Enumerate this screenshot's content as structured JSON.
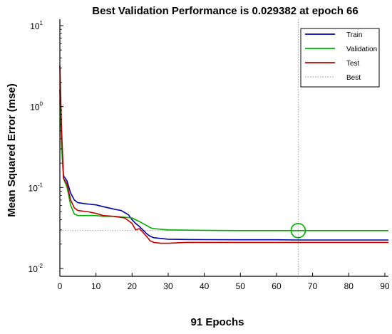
{
  "chart_data": {
    "type": "line",
    "title": "Best Validation Performance is 0.029382 at epoch 66",
    "xlabel": "91 Epochs",
    "ylabel": "Mean Squared Error  (mse)",
    "xlim": [
      0,
      91
    ],
    "ylim": [
      0.008,
      12
    ],
    "yscale": "log",
    "grid": false,
    "legend_position": "top-right",
    "x_ticks": [
      0,
      10,
      20,
      30,
      40,
      50,
      60,
      70,
      80,
      90
    ],
    "y_ticks": [
      {
        "value": 0.01,
        "base": "10",
        "exp": "-2"
      },
      {
        "value": 0.1,
        "base": "10",
        "exp": "-1"
      },
      {
        "value": 1,
        "base": "10",
        "exp": "0"
      },
      {
        "value": 10,
        "base": "10",
        "exp": "1"
      }
    ],
    "series": [
      {
        "name": "Train",
        "color": "#0000a8",
        "x": [
          0,
          0.5,
          1,
          2,
          3,
          4,
          5,
          7,
          10,
          12,
          15,
          17,
          19,
          20,
          21,
          22,
          23,
          24,
          25,
          26,
          28,
          30,
          35,
          40,
          50,
          60,
          66,
          70,
          80,
          91
        ],
        "y": [
          1.6,
          0.4,
          0.14,
          0.12,
          0.085,
          0.07,
          0.065,
          0.063,
          0.061,
          0.058,
          0.054,
          0.052,
          0.046,
          0.04,
          0.036,
          0.033,
          0.03,
          0.027,
          0.025,
          0.024,
          0.0235,
          0.023,
          0.0228,
          0.0227,
          0.0226,
          0.0226,
          0.0225,
          0.0225,
          0.0225,
          0.0225
        ]
      },
      {
        "name": "Validation",
        "color": "#00b000",
        "x": [
          0,
          0.5,
          1,
          2,
          3,
          4,
          5,
          8,
          10,
          12,
          15,
          18,
          20,
          22,
          24,
          25,
          26,
          28,
          30,
          40,
          50,
          60,
          66,
          70,
          80,
          91
        ],
        "y": [
          1.2,
          0.3,
          0.13,
          0.1,
          0.06,
          0.047,
          0.045,
          0.045,
          0.045,
          0.044,
          0.044,
          0.043,
          0.042,
          0.038,
          0.034,
          0.032,
          0.031,
          0.0305,
          0.03,
          0.0296,
          0.0294,
          0.02938,
          0.029382,
          0.02938,
          0.02938,
          0.02938
        ]
      },
      {
        "name": "Test",
        "color": "#c00000",
        "x": [
          0,
          0.5,
          1,
          2,
          3,
          4,
          5,
          8,
          10,
          12,
          15,
          18,
          20,
          21,
          22,
          23,
          24,
          25,
          26,
          28,
          30,
          35,
          40,
          50,
          60,
          66,
          70,
          80,
          91
        ],
        "y": [
          3.2,
          0.5,
          0.13,
          0.11,
          0.07,
          0.056,
          0.052,
          0.05,
          0.048,
          0.045,
          0.044,
          0.042,
          0.036,
          0.03,
          0.031,
          0.028,
          0.025,
          0.022,
          0.021,
          0.0205,
          0.0205,
          0.021,
          0.021,
          0.021,
          0.021,
          0.021,
          0.021,
          0.021,
          0.021
        ]
      }
    ],
    "best": {
      "label": "Best",
      "epoch": 66,
      "value": 0.029382,
      "color": "#8a8a8a"
    }
  }
}
